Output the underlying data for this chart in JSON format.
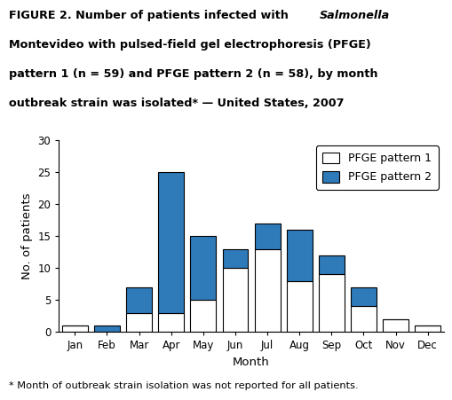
{
  "months": [
    "Jan",
    "Feb",
    "Mar",
    "Apr",
    "May",
    "Jun",
    "Jul",
    "Aug",
    "Sep",
    "Oct",
    "Nov",
    "Dec"
  ],
  "pfge1": [
    1,
    0,
    3,
    3,
    5,
    10,
    13,
    8,
    9,
    4,
    2,
    1
  ],
  "pfge2": [
    0,
    1,
    4,
    22,
    10,
    3,
    4,
    8,
    3,
    3,
    0,
    0
  ],
  "pfge1_color": "#ffffff",
  "pfge2_color": "#2f7ab9",
  "edge_color": "#000000",
  "ylim": [
    0,
    30
  ],
  "yticks": [
    0,
    5,
    10,
    15,
    20,
    25,
    30
  ],
  "ylabel": "No. of patients",
  "xlabel": "Month",
  "footnote": "* Month of outbreak strain isolation was not reported for all patients.",
  "legend_label1": "PFGE pattern 1",
  "legend_label2": "PFGE pattern 2",
  "bar_width": 0.8,
  "background_color": "#ffffff",
  "title_fontsize": 9.2,
  "axis_fontsize": 9.5,
  "tick_fontsize": 8.5,
  "legend_fontsize": 9,
  "footnote_fontsize": 8.2
}
